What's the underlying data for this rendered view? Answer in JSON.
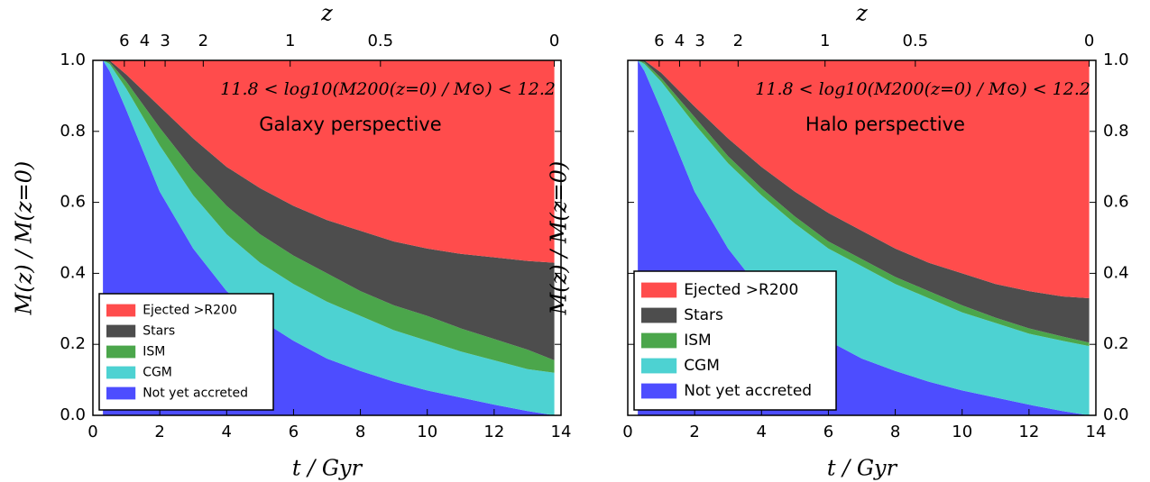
{
  "chart_data": [
    {
      "type": "stacked_area",
      "annotation": "11.8 < log10(M200(z=0) / M⊙) < 12.2",
      "subtitle": "Galaxy perspective",
      "xlabel": "t / Gyr",
      "ylabel": "M(z) / M(z=0)",
      "x2label": "z",
      "x": [
        0.3,
        0.5,
        1,
        2,
        3,
        4,
        5,
        6,
        7,
        8,
        9,
        10,
        11,
        12,
        13,
        13.8
      ],
      "series": [
        {
          "name": "Not yet accreted",
          "color": "#4d4dff",
          "values": [
            1.0,
            0.97,
            0.86,
            0.63,
            0.47,
            0.35,
            0.27,
            0.21,
            0.16,
            0.125,
            0.095,
            0.07,
            0.05,
            0.03,
            0.012,
            0.0
          ]
        },
        {
          "name": "CGM",
          "color": "#4dd2d2",
          "values": [
            0,
            0.02,
            0.06,
            0.13,
            0.15,
            0.16,
            0.16,
            0.16,
            0.16,
            0.155,
            0.145,
            0.14,
            0.13,
            0.125,
            0.118,
            0.12
          ]
        },
        {
          "name": "ISM",
          "color": "#4ba64b",
          "values": [
            0,
            0.005,
            0.02,
            0.05,
            0.07,
            0.08,
            0.08,
            0.08,
            0.08,
            0.07,
            0.07,
            0.07,
            0.065,
            0.06,
            0.055,
            0.035
          ]
        },
        {
          "name": "Stars",
          "color": "#4d4d4d",
          "values": [
            0,
            0.005,
            0.02,
            0.06,
            0.09,
            0.11,
            0.13,
            0.14,
            0.15,
            0.17,
            0.18,
            0.19,
            0.21,
            0.23,
            0.25,
            0.275
          ]
        },
        {
          "name": "Ejected >R200",
          "color": "#ff4c4c",
          "values": [
            0,
            0,
            0.04,
            0.13,
            0.22,
            0.3,
            0.36,
            0.41,
            0.45,
            0.48,
            0.51,
            0.53,
            0.545,
            0.555,
            0.565,
            0.57
          ]
        }
      ],
      "xlim": [
        0,
        14
      ],
      "ylim": [
        0,
        1
      ],
      "xticks": [
        0,
        2,
        4,
        6,
        8,
        10,
        12,
        14
      ],
      "yticks": [
        {
          "value": 0,
          "label": "0.0"
        },
        0.2,
        0.4,
        0.6,
        0.8,
        {
          "value": 1,
          "label": "1.0"
        }
      ],
      "x2ticks": [
        {
          "value": 0.94,
          "label": "6"
        },
        {
          "value": 1.55,
          "label": "4"
        },
        {
          "value": 2.16,
          "label": "3"
        },
        {
          "value": 3.3,
          "label": "2"
        },
        {
          "value": 5.9,
          "label": "1"
        },
        {
          "value": 8.6,
          "label": "0.5"
        },
        {
          "value": 13.8,
          "label": "0"
        }
      ],
      "y_axis_side": "left",
      "legend": "lower left"
    },
    {
      "type": "stacked_area",
      "annotation": "11.8 < log10(M200(z=0) / M⊙) < 12.2",
      "subtitle": "Halo perspective",
      "xlabel": "t / Gyr",
      "ylabel": "M(z) / M(z=0)",
      "x2label": "z",
      "x": [
        0.3,
        0.5,
        1,
        2,
        3,
        4,
        5,
        6,
        7,
        8,
        9,
        10,
        11,
        12,
        13,
        13.8
      ],
      "series": [
        {
          "name": "Not yet accreted",
          "color": "#4d4dff",
          "values": [
            1.0,
            0.97,
            0.86,
            0.63,
            0.47,
            0.35,
            0.27,
            0.21,
            0.16,
            0.125,
            0.095,
            0.07,
            0.05,
            0.03,
            0.012,
            0.0
          ]
        },
        {
          "name": "CGM",
          "color": "#4dd2d2",
          "values": [
            0,
            0.02,
            0.08,
            0.19,
            0.24,
            0.27,
            0.27,
            0.26,
            0.26,
            0.245,
            0.235,
            0.22,
            0.21,
            0.2,
            0.198,
            0.195
          ]
        },
        {
          "name": "ISM",
          "color": "#4ba64b",
          "values": [
            0,
            0.005,
            0.01,
            0.02,
            0.02,
            0.02,
            0.02,
            0.02,
            0.02,
            0.02,
            0.02,
            0.02,
            0.015,
            0.015,
            0.012,
            0.01
          ]
        },
        {
          "name": "Stars",
          "color": "#4d4d4d",
          "values": [
            0,
            0.005,
            0.015,
            0.03,
            0.05,
            0.06,
            0.07,
            0.08,
            0.08,
            0.08,
            0.08,
            0.09,
            0.095,
            0.105,
            0.113,
            0.125
          ]
        },
        {
          "name": "Ejected >R200",
          "color": "#ff4c4c",
          "values": [
            0,
            0,
            0.035,
            0.13,
            0.22,
            0.3,
            0.37,
            0.43,
            0.48,
            0.53,
            0.57,
            0.6,
            0.63,
            0.65,
            0.665,
            0.67
          ]
        }
      ],
      "xlim": [
        0,
        14
      ],
      "ylim": [
        0,
        1
      ],
      "xticks": [
        0,
        2,
        4,
        6,
        8,
        10,
        12,
        14
      ],
      "yticks": [
        {
          "value": 0,
          "label": "0.0"
        },
        0.2,
        0.4,
        0.6,
        0.8,
        {
          "value": 1,
          "label": "1.0"
        }
      ],
      "x2ticks": [
        {
          "value": 0.94,
          "label": "6"
        },
        {
          "value": 1.55,
          "label": "4"
        },
        {
          "value": 2.16,
          "label": "3"
        },
        {
          "value": 3.3,
          "label": "2"
        },
        {
          "value": 5.9,
          "label": "1"
        },
        {
          "value": 8.6,
          "label": "0.5"
        },
        {
          "value": 13.8,
          "label": "0"
        }
      ],
      "y_axis_side": "right",
      "legend": "lower left"
    }
  ]
}
